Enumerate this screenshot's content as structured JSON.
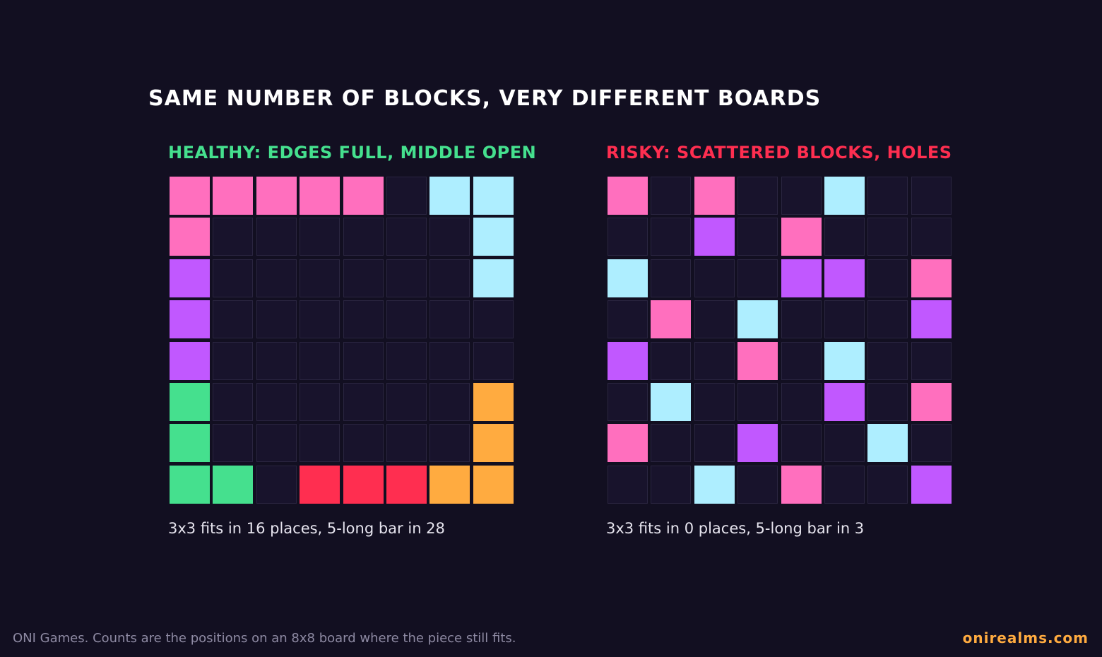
{
  "title": "SAME NUMBER OF BLOCKS, VERY DIFFERENT BOARDS",
  "colors": {
    "background": "#120f21",
    "empty": "#18132c",
    "pink": "#ff6fbe",
    "cyan": "#aeeeff",
    "purple": "#c158ff",
    "green": "#45e08e",
    "orange": "#ffab40",
    "red": "#ff2e50"
  },
  "panels": [
    {
      "heading": "HEALTHY: EDGES FULL, MIDDLE OPEN",
      "heading_color": "#45e08e",
      "caption": "3x3 fits in 16 places, 5-long bar in 28",
      "board": [
        [
          "pink",
          "pink",
          "pink",
          "pink",
          "pink",
          "empty",
          "cyan",
          "cyan"
        ],
        [
          "pink",
          "empty",
          "empty",
          "empty",
          "empty",
          "empty",
          "empty",
          "cyan"
        ],
        [
          "purple",
          "empty",
          "empty",
          "empty",
          "empty",
          "empty",
          "empty",
          "cyan"
        ],
        [
          "purple",
          "empty",
          "empty",
          "empty",
          "empty",
          "empty",
          "empty",
          "empty"
        ],
        [
          "purple",
          "empty",
          "empty",
          "empty",
          "empty",
          "empty",
          "empty",
          "empty"
        ],
        [
          "green",
          "empty",
          "empty",
          "empty",
          "empty",
          "empty",
          "empty",
          "orange"
        ],
        [
          "green",
          "empty",
          "empty",
          "empty",
          "empty",
          "empty",
          "empty",
          "orange"
        ],
        [
          "green",
          "green",
          "empty",
          "red",
          "red",
          "red",
          "orange",
          "orange"
        ]
      ]
    },
    {
      "heading": "RISKY: SCATTERED BLOCKS, HOLES",
      "heading_color": "#ff2e50",
      "caption": "3x3 fits in 0 places, 5-long bar in 3",
      "board": [
        [
          "pink",
          "empty",
          "pink",
          "empty",
          "empty",
          "cyan",
          "empty",
          "empty"
        ],
        [
          "empty",
          "empty",
          "purple",
          "empty",
          "pink",
          "empty",
          "empty",
          "empty"
        ],
        [
          "cyan",
          "empty",
          "empty",
          "empty",
          "purple",
          "purple",
          "empty",
          "pink"
        ],
        [
          "empty",
          "pink",
          "empty",
          "cyan",
          "empty",
          "empty",
          "empty",
          "purple"
        ],
        [
          "purple",
          "empty",
          "empty",
          "pink",
          "empty",
          "cyan",
          "empty",
          "empty"
        ],
        [
          "empty",
          "cyan",
          "empty",
          "empty",
          "empty",
          "purple",
          "empty",
          "pink"
        ],
        [
          "pink",
          "empty",
          "empty",
          "purple",
          "empty",
          "empty",
          "cyan",
          "empty"
        ],
        [
          "empty",
          "empty",
          "cyan",
          "empty",
          "pink",
          "empty",
          "empty",
          "purple"
        ]
      ]
    }
  ],
  "footer": {
    "note": "ONI Games. Counts are the positions on an 8x8 board where the piece still fits.",
    "brand": "onirealms.com"
  }
}
